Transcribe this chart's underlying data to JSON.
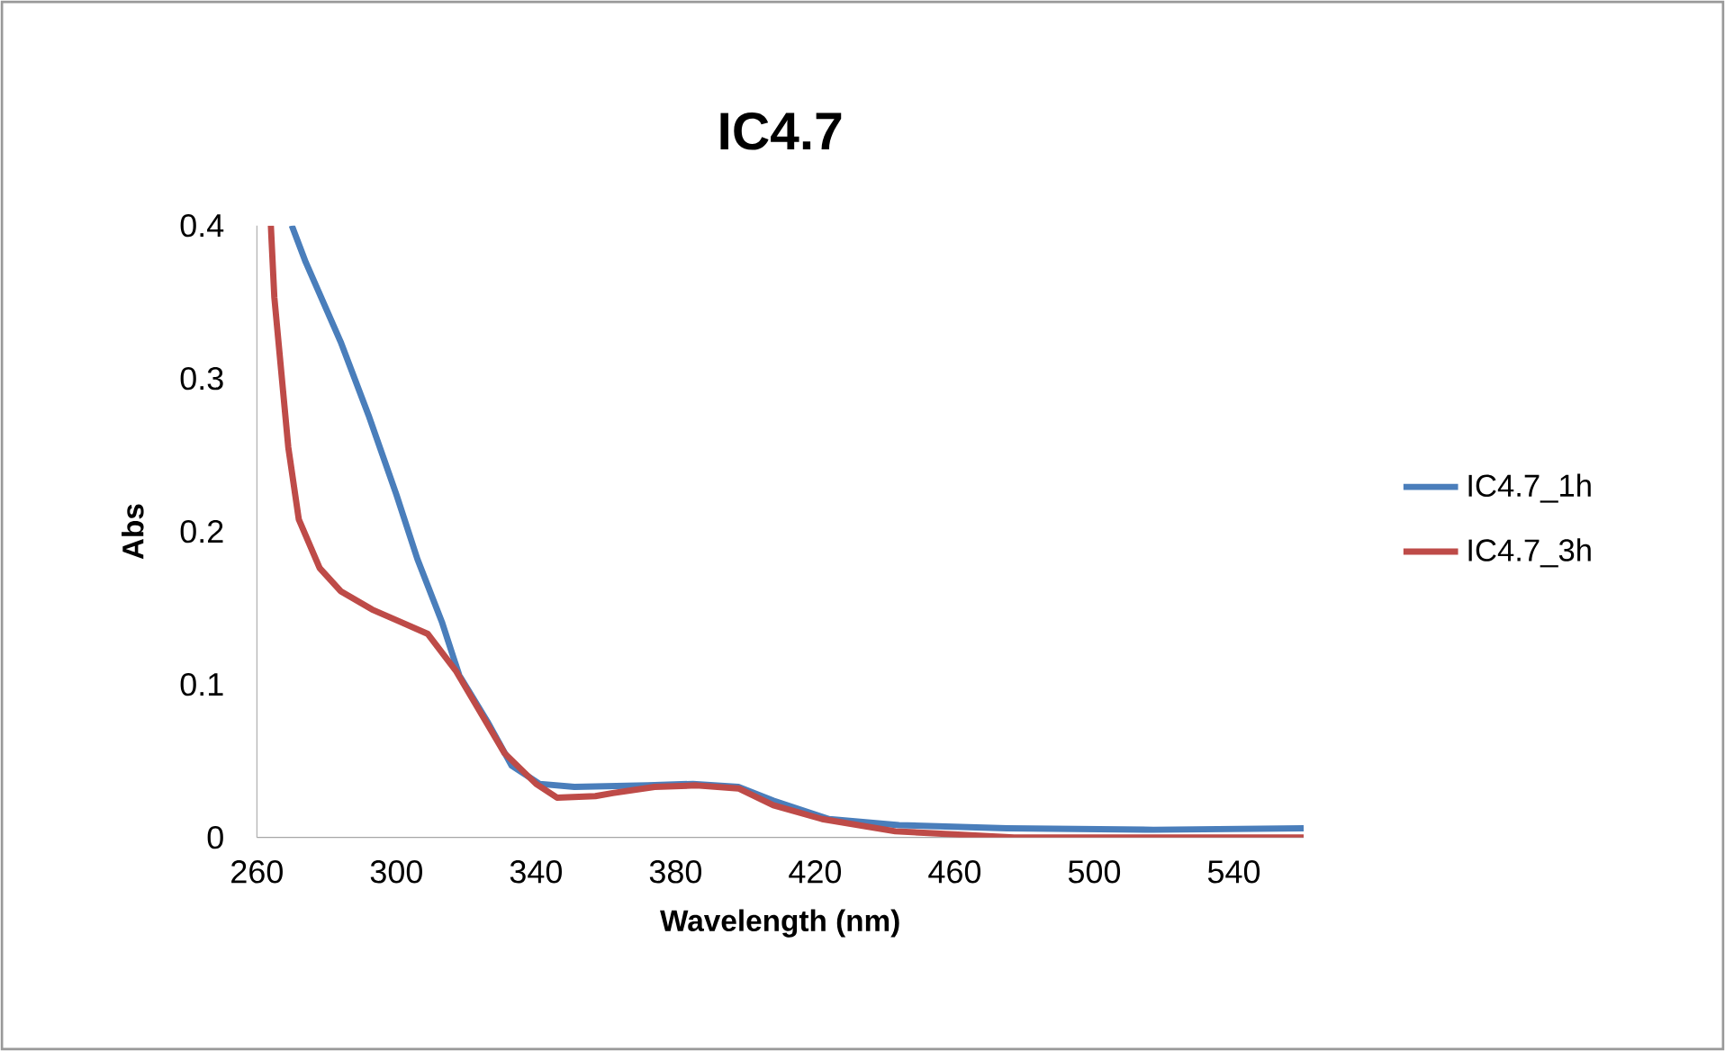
{
  "chart_data": {
    "type": "line",
    "title": "IC4.7",
    "xlabel": "Wavelength (nm)",
    "ylabel": "Abs",
    "xlim": [
      260,
      560
    ],
    "ylim": [
      0,
      0.4
    ],
    "xticks": [
      260,
      300,
      340,
      380,
      420,
      460,
      500,
      540
    ],
    "yticks": [
      0,
      0.1,
      0.2,
      0.3,
      0.4
    ],
    "legend": "right",
    "series": [
      {
        "name": "IC4.7_1h",
        "color": "#4a7ebb",
        "x": [
          270,
          274,
          284,
          292,
          300,
          306,
          313,
          318,
          326,
          333,
          341,
          351,
          372,
          385,
          398,
          408,
          424,
          444,
          475,
          517,
          560
        ],
        "values": [
          0.4,
          0.376,
          0.324,
          0.276,
          0.224,
          0.182,
          0.141,
          0.106,
          0.076,
          0.047,
          0.035,
          0.033,
          0.034,
          0.035,
          0.033,
          0.024,
          0.012,
          0.008,
          0.006,
          0.005,
          0.006
        ]
      },
      {
        "name": "IC4.7_3h",
        "color": "#be4b48",
        "x": [
          264,
          265,
          269,
          272,
          278,
          284,
          293,
          301,
          309,
          317,
          324,
          331,
          340,
          346,
          357,
          362,
          374,
          386,
          398,
          408,
          422,
          443,
          477,
          560
        ],
        "values": [
          0.4,
          0.353,
          0.255,
          0.208,
          0.176,
          0.161,
          0.149,
          0.141,
          0.133,
          0.109,
          0.082,
          0.055,
          0.035,
          0.026,
          0.027,
          0.029,
          0.033,
          0.034,
          0.032,
          0.021,
          0.012,
          0.004,
          0.0,
          0.0
        ]
      }
    ]
  }
}
